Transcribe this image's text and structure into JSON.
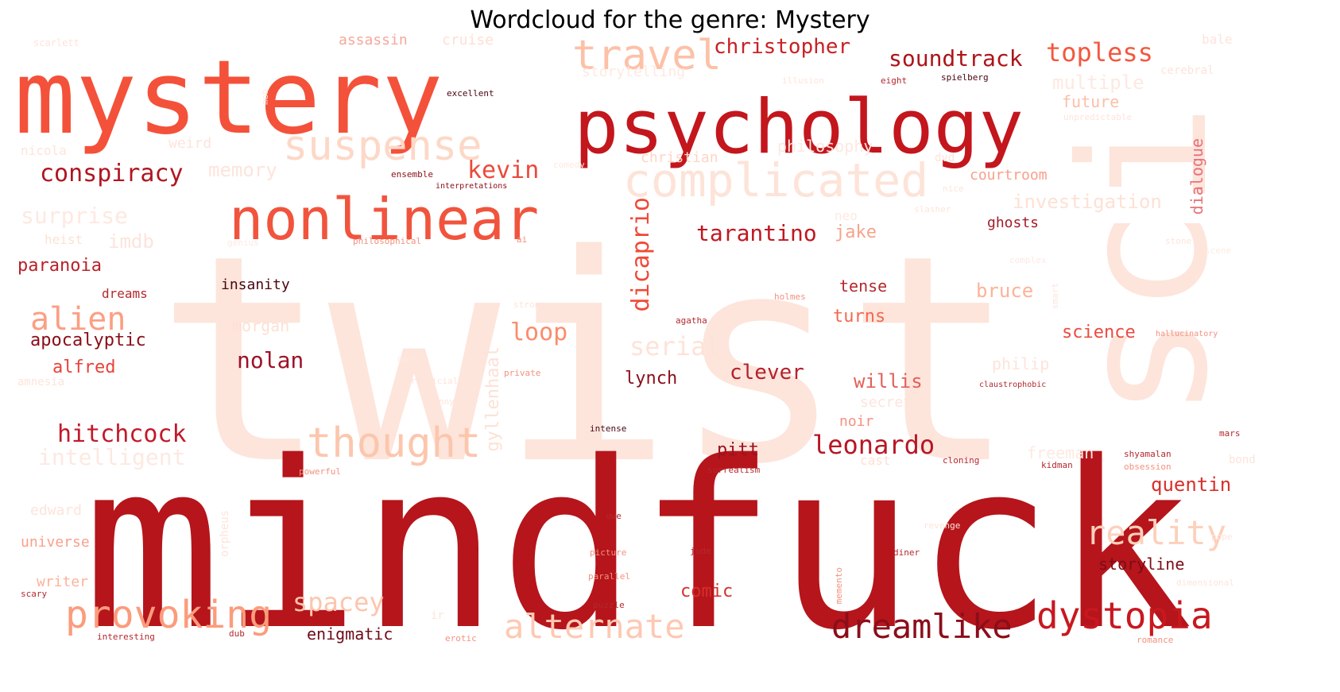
{
  "title": "Wordcloud for the genre: Mystery",
  "words": [
    {
      "text": "twist",
      "color": "#fde5dc"
    },
    {
      "text": "sci",
      "color": "#fde5dc"
    },
    {
      "text": "mindfuck",
      "color": "#b5151b"
    },
    {
      "text": "mystery",
      "color": "#f4513a"
    },
    {
      "text": "psychology",
      "color": "#c3161d"
    },
    {
      "text": "nonlinear",
      "color": "#f1543d"
    },
    {
      "text": "complicated",
      "color": "#fde3d8"
    },
    {
      "text": "suspense",
      "color": "#fdd8c7"
    },
    {
      "text": "travel",
      "color": "#fcc1a7"
    },
    {
      "text": "thought",
      "color": "#fcc6ad"
    },
    {
      "text": "provoking",
      "color": "#fb9c7c"
    },
    {
      "text": "dystopia",
      "color": "#c8181f"
    },
    {
      "text": "dreamlike",
      "color": "#8c0d1a"
    },
    {
      "text": "alternate",
      "color": "#fdc9b3"
    },
    {
      "text": "reality",
      "color": "#fdd0bb"
    },
    {
      "text": "soundtrack",
      "color": "#ad1419"
    },
    {
      "text": "topless",
      "color": "#f4573f"
    },
    {
      "text": "christopher",
      "color": "#c92125"
    },
    {
      "text": "conspiracy",
      "color": "#b01520"
    },
    {
      "text": "kevin",
      "color": "#eb4a3a"
    },
    {
      "text": "tarantino",
      "color": "#c11720"
    },
    {
      "text": "jake",
      "color": "#f7a38a"
    },
    {
      "text": "dicaprio",
      "color": "#ef4a37"
    },
    {
      "text": "alien",
      "color": "#fb9f84"
    },
    {
      "text": "apocalyptic",
      "color": "#8a0d17"
    },
    {
      "text": "alfred",
      "color": "#e84338"
    },
    {
      "text": "paranoia",
      "color": "#b8212a"
    },
    {
      "text": "hitchcock",
      "color": "#c1192b"
    },
    {
      "text": "nolan",
      "color": "#9d1227"
    },
    {
      "text": "loop",
      "color": "#fb8c6a"
    },
    {
      "text": "serial",
      "color": "#fde3d7"
    },
    {
      "text": "clever",
      "color": "#b5212c"
    },
    {
      "text": "lynch",
      "color": "#8c0d1a"
    },
    {
      "text": "willis",
      "color": "#e4605a"
    },
    {
      "text": "leonardo",
      "color": "#b71624"
    },
    {
      "text": "pitt",
      "color": "#9b1222"
    },
    {
      "text": "spacey",
      "color": "#fdc5ad"
    },
    {
      "text": "comic",
      "color": "#d4312b"
    },
    {
      "text": "enigmatic",
      "color": "#6e0b18"
    },
    {
      "text": "quentin",
      "color": "#d8302a"
    },
    {
      "text": "storyline",
      "color": "#7c0c16"
    },
    {
      "text": "science",
      "color": "#ea4b42"
    },
    {
      "text": "turns",
      "color": "#f26a50"
    },
    {
      "text": "tense",
      "color": "#b4282e"
    },
    {
      "text": "bruce",
      "color": "#fcb399"
    },
    {
      "text": "investigation",
      "color": "#fde1d5"
    },
    {
      "text": "courtroom",
      "color": "#f8a08c"
    },
    {
      "text": "ghosts",
      "color": "#a31c28"
    },
    {
      "text": "future",
      "color": "#fcbfa8"
    },
    {
      "text": "multiple",
      "color": "#fde9e1"
    },
    {
      "text": "dialogue",
      "color": "#e7717a"
    },
    {
      "text": "memory",
      "color": "#fde4db"
    },
    {
      "text": "surprise",
      "color": "#fde9e1"
    },
    {
      "text": "imdb",
      "color": "#fde4db"
    },
    {
      "text": "insanity",
      "color": "#4a0610"
    },
    {
      "text": "morgan",
      "color": "#fde0d4"
    },
    {
      "text": "intelligent",
      "color": "#fde9e1"
    },
    {
      "text": "philosophy",
      "color": "#fde9e1"
    },
    {
      "text": "christian",
      "color": "#fdd6c6"
    },
    {
      "text": "assassin",
      "color": "#f6a89a"
    },
    {
      "text": "cruise",
      "color": "#fde0d4"
    },
    {
      "text": "storytelling",
      "color": "#fde9e1"
    },
    {
      "text": "gyllenhaal",
      "color": "#fde1d5"
    },
    {
      "text": "noir",
      "color": "#f3917f"
    },
    {
      "text": "secret",
      "color": "#fde4db"
    },
    {
      "text": "philip",
      "color": "#fde4db"
    },
    {
      "text": "edward",
      "color": "#fde4db"
    },
    {
      "text": "universe",
      "color": "#f8a08c"
    },
    {
      "text": "writer",
      "color": "#fcb399"
    },
    {
      "text": "dreams",
      "color": "#b4282e"
    },
    {
      "text": "heist",
      "color": "#fde1d5"
    },
    {
      "text": "nicola",
      "color": "#fde4db"
    },
    {
      "text": "weird",
      "color": "#fde4db"
    },
    {
      "text": "scarlett",
      "color": "#fde4db"
    },
    {
      "text": "bale",
      "color": "#fde4db"
    },
    {
      "text": "cerebral",
      "color": "#fde4db"
    },
    {
      "text": "neo",
      "color": "#fde9e1"
    },
    {
      "text": "cast",
      "color": "#fde0d4"
    },
    {
      "text": "freeman",
      "color": "#fde9e1"
    },
    {
      "text": "unpredictable",
      "color": "#fde4db"
    },
    {
      "text": "spielberg",
      "color": "#4a0610"
    },
    {
      "text": "excellent",
      "color": "#4a0610"
    },
    {
      "text": "ensemble",
      "color": "#8a0d17"
    },
    {
      "text": "interpretations",
      "color": "#8a0d17"
    },
    {
      "text": "slasher",
      "color": "#fde4db"
    },
    {
      "text": "philosophical",
      "color": "#f3917f"
    },
    {
      "text": "ai",
      "color": "#f3917f"
    },
    {
      "text": "strong",
      "color": "#fde4db"
    },
    {
      "text": "agatha",
      "color": "#b4282e"
    },
    {
      "text": "private",
      "color": "#f3917f"
    },
    {
      "text": "artificial",
      "color": "#fde4db"
    },
    {
      "text": "johnny",
      "color": "#fde4db"
    },
    {
      "text": "claustrophobic",
      "color": "#b4282e"
    },
    {
      "text": "hallucinatory",
      "color": "#f3917f"
    },
    {
      "text": "shyamalan",
      "color": "#b4282e"
    },
    {
      "text": "obsession",
      "color": "#f3917f"
    },
    {
      "text": "cloning",
      "color": "#b4282e"
    },
    {
      "text": "kidman",
      "color": "#b4282e"
    },
    {
      "text": "surrealism",
      "color": "#b4282e"
    },
    {
      "text": "powerful",
      "color": "#f3917f"
    },
    {
      "text": "picture",
      "color": "#f3917f"
    },
    {
      "text": "parallel",
      "color": "#f3917f"
    },
    {
      "text": "puzzle",
      "color": "#b4282e"
    },
    {
      "text": "jude",
      "color": "#b4282e"
    },
    {
      "text": "memento",
      "color": "#f3917f"
    },
    {
      "text": "revenge",
      "color": "#fde4db"
    },
    {
      "text": "mars",
      "color": "#b4282e"
    },
    {
      "text": "interesting",
      "color": "#b4282e"
    },
    {
      "text": "dub",
      "color": "#b4282e"
    },
    {
      "text": "erotic",
      "color": "#f3917f"
    },
    {
      "text": "ir",
      "color": "#fde4db"
    },
    {
      "text": "scary",
      "color": "#b4282e"
    },
    {
      "text": "holmes",
      "color": "#f3917f"
    },
    {
      "text": "amnesia",
      "color": "#fde4db"
    },
    {
      "text": "eight",
      "color": "#b4282e"
    },
    {
      "text": "illusion",
      "color": "#fde4db"
    },
    {
      "text": "nice",
      "color": "#fde4db"
    },
    {
      "text": "scene",
      "color": "#fde9e1"
    },
    {
      "text": "dvd",
      "color": "#fde4db"
    },
    {
      "text": "comedy",
      "color": "#fde9e1"
    },
    {
      "text": "genius",
      "color": "#fde9e1"
    },
    {
      "text": "complex",
      "color": "#fde9e1"
    },
    {
      "text": "dark",
      "color": "#fde9e1"
    },
    {
      "text": "intense",
      "color": "#4a0610"
    },
    {
      "text": "stone",
      "color": "#fde4db"
    },
    {
      "text": "pope",
      "color": "#fde4db"
    },
    {
      "text": "bond",
      "color": "#fde4db"
    },
    {
      "text": "dimensional",
      "color": "#fde4db"
    },
    {
      "text": "orpheus",
      "color": "#fde4db"
    },
    {
      "text": "romance",
      "color": "#f3917f"
    },
    {
      "text": "uwe",
      "color": "#b4282e"
    },
    {
      "text": "diner",
      "color": "#b4282e"
    },
    {
      "text": "smart",
      "color": "#fde4db"
    },
    {
      "text": "mob",
      "color": "#fde9e1"
    }
  ]
}
